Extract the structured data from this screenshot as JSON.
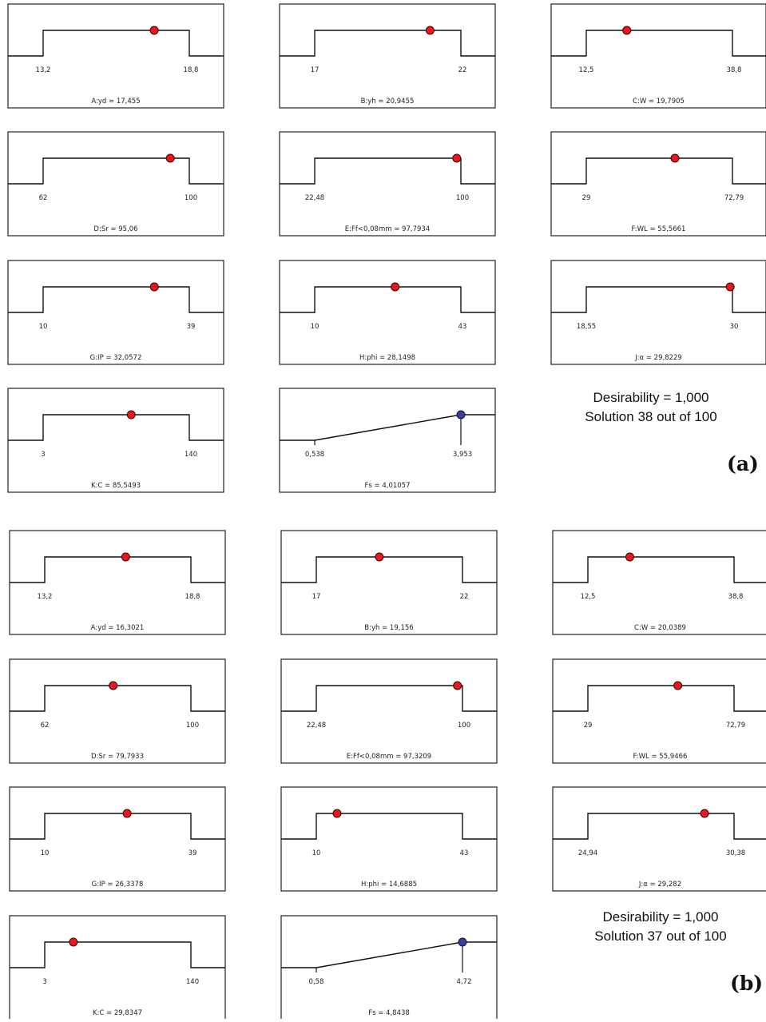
{
  "chart_data": [
    {
      "panel": "(a)",
      "type": "ramp",
      "summary": [
        "Desirability = 1,000",
        "Solution 38 out of 100"
      ],
      "plots": [
        {
          "kind": "range",
          "min": 13.2,
          "max": 18.8,
          "lo_label": "13,2",
          "hi_label": "18,8",
          "value": 17.455,
          "caption": "A:yd  = 17,455"
        },
        {
          "kind": "range",
          "min": 17,
          "max": 22,
          "lo_label": "17",
          "hi_label": "22",
          "value": 20.9455,
          "caption": "B:yh  = 20,9455"
        },
        {
          "kind": "range",
          "min": 12.5,
          "max": 38.8,
          "lo_label": "12,5",
          "hi_label": "38,8",
          "value": 19.7905,
          "caption": "C:W  = 19,7905"
        },
        {
          "kind": "range",
          "min": 62,
          "max": 100,
          "lo_label": "62",
          "hi_label": "100",
          "value": 95.06,
          "caption": "D:Sr = 95,06"
        },
        {
          "kind": "range",
          "min": 22.48,
          "max": 100,
          "lo_label": "22,48",
          "hi_label": "100",
          "value": 97.7934,
          "caption": "E:Ff<0,08mm = 97,7934"
        },
        {
          "kind": "range",
          "min": 29,
          "max": 72.79,
          "lo_label": "29",
          "hi_label": "72,79",
          "value": 55.5661,
          "caption": "F:WL  = 55,5661"
        },
        {
          "kind": "range",
          "min": 10,
          "max": 39,
          "lo_label": "10",
          "hi_label": "39",
          "value": 32.0572,
          "caption": "G:IP = 32,0572"
        },
        {
          "kind": "range",
          "min": 10,
          "max": 43,
          "lo_label": "10",
          "hi_label": "43",
          "value": 28.1498,
          "caption": "H:phi = 28,1498"
        },
        {
          "kind": "range",
          "min": 18.55,
          "max": 30,
          "lo_label": "18,55",
          "hi_label": "30",
          "value": 29.8229,
          "caption": "J:α = 29,8229"
        },
        {
          "kind": "range",
          "min": 3,
          "max": 140,
          "lo_label": "3",
          "hi_label": "140",
          "value": 85.5493,
          "caption": "K:C = 85,5493"
        },
        {
          "kind": "maximize",
          "min": 0.538,
          "max": 3.953,
          "lo_label": "0,538",
          "hi_label": "3,953",
          "value": 4.01057,
          "caption": "Fs = 4,01057"
        }
      ]
    },
    {
      "panel": "(b)",
      "type": "ramp",
      "summary": [
        "Desirability = 1,000",
        "Solution 37 out of 100"
      ],
      "plots": [
        {
          "kind": "range",
          "min": 13.2,
          "max": 18.8,
          "lo_label": "13,2",
          "hi_label": "18,8",
          "value": 16.3021,
          "caption": "A:yd  = 16,3021"
        },
        {
          "kind": "range",
          "min": 17,
          "max": 22,
          "lo_label": "17",
          "hi_label": "22",
          "value": 19.156,
          "caption": "B:yh  = 19,156"
        },
        {
          "kind": "range",
          "min": 12.5,
          "max": 38.8,
          "lo_label": "12,5",
          "hi_label": "38,8",
          "value": 20.0389,
          "caption": "C:W  = 20,0389"
        },
        {
          "kind": "range",
          "min": 62,
          "max": 100,
          "lo_label": "62",
          "hi_label": "100",
          "value": 79.7933,
          "caption": "D:Sr = 79,7933"
        },
        {
          "kind": "range",
          "min": 22.48,
          "max": 100,
          "lo_label": "22,48",
          "hi_label": "100",
          "value": 97.3209,
          "caption": "E:Ff<0,08mm = 97,3209"
        },
        {
          "kind": "range",
          "min": 29,
          "max": 72.79,
          "lo_label": "29",
          "hi_label": "72,79",
          "value": 55.9466,
          "caption": "F:WL  = 55,9466"
        },
        {
          "kind": "range",
          "min": 10,
          "max": 39,
          "lo_label": "10",
          "hi_label": "39",
          "value": 26.3378,
          "caption": "G:IP = 26,3378"
        },
        {
          "kind": "range",
          "min": 10,
          "max": 43,
          "lo_label": "10",
          "hi_label": "43",
          "value": 14.6885,
          "caption": "H:phi = 14,6885"
        },
        {
          "kind": "range",
          "min": 24.94,
          "max": 30.38,
          "lo_label": "24,94",
          "hi_label": "30,38",
          "value": 29.282,
          "caption": "J:α = 29,282"
        },
        {
          "kind": "range",
          "min": 3,
          "max": 140,
          "lo_label": "3",
          "hi_label": "140",
          "value": 29.8347,
          "caption": "K:C = 29,8347"
        },
        {
          "kind": "maximize",
          "min": 0.58,
          "max": 4.72,
          "lo_label": "0,58",
          "hi_label": "4,72",
          "value": 4.8438,
          "caption": "Fs = 4,8438"
        }
      ]
    }
  ],
  "colors": {
    "factor_dot": "#e8191e",
    "response_dot": "#3c3f9a",
    "line": "#111111",
    "frame": "#222222"
  }
}
